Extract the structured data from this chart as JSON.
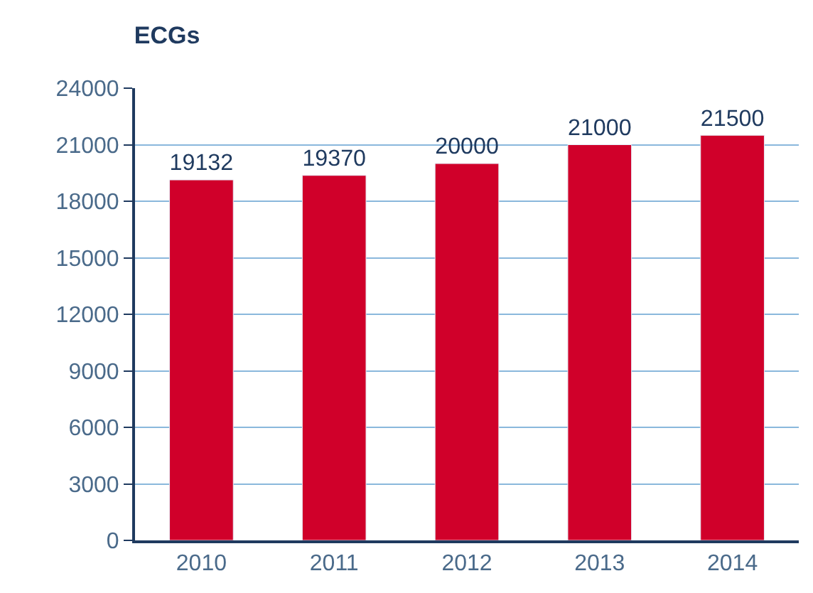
{
  "chart_data": {
    "type": "bar",
    "title": "ECGs",
    "categories": [
      "2010",
      "2011",
      "2012",
      "2013",
      "2014"
    ],
    "values": [
      19132,
      19370,
      20000,
      21000,
      21500
    ],
    "color": "#d0002a",
    "ylim": [
      0,
      24000
    ],
    "yticks": [
      0,
      3000,
      6000,
      9000,
      12000,
      15000,
      18000,
      21000,
      24000
    ],
    "grid": "y",
    "data_labels": true,
    "legend": false
  }
}
